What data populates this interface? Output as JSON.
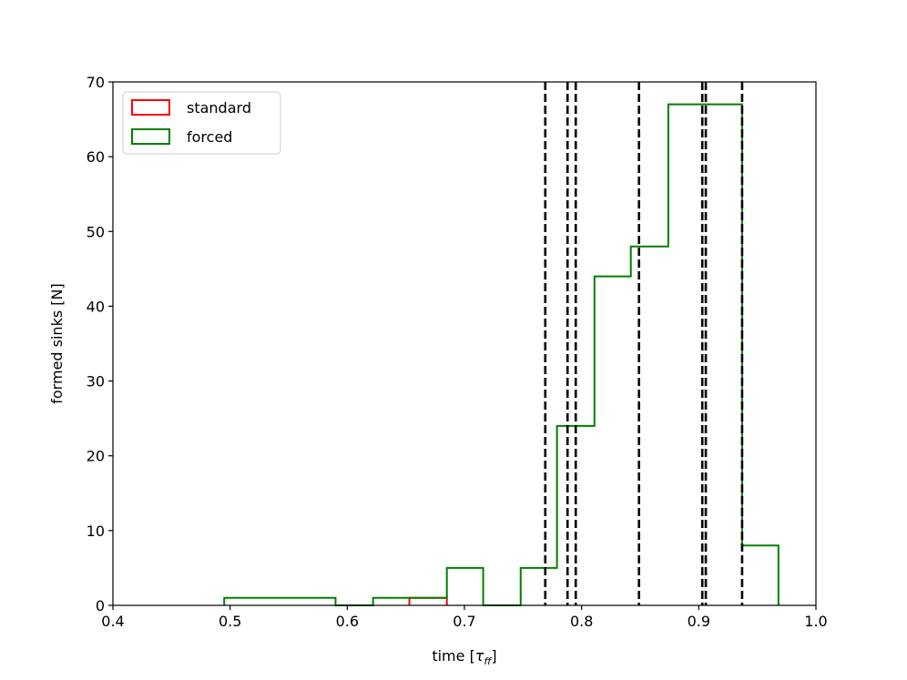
{
  "chart_data": {
    "type": "histogram-step",
    "title": "",
    "xlabel": "time [",
    "xlabel_symbol": "τ",
    "xlabel_subscript": "ff",
    "xlabel_suffix": "]",
    "ylabel": "formed sinks [N]",
    "xlim": [
      0.4,
      1.0
    ],
    "ylim": [
      0,
      70
    ],
    "xticks": [
      0.4,
      0.5,
      0.6,
      0.7,
      0.8,
      0.9,
      1.0
    ],
    "xtick_labels": [
      "0.4",
      "0.5",
      "0.6",
      "0.7",
      "0.8",
      "0.9",
      "1.0"
    ],
    "yticks": [
      0,
      10,
      20,
      30,
      40,
      50,
      60,
      70
    ],
    "ytick_labels": [
      "0",
      "10",
      "20",
      "30",
      "40",
      "50",
      "60",
      "70"
    ],
    "grid": false,
    "legend_position": "top-left",
    "series": [
      {
        "name": "standard",
        "color": "#ff0000",
        "bin_edges": [
          0.653,
          0.685
        ],
        "counts": [
          1
        ]
      },
      {
        "name": "forced",
        "color": "#008000",
        "bin_edges": [
          0.495,
          0.527,
          0.558,
          0.59,
          0.622,
          0.653,
          0.685,
          0.716,
          0.748,
          0.779,
          0.811,
          0.842,
          0.874,
          0.905,
          0.937,
          0.968
        ],
        "counts": [
          1,
          1,
          1,
          0,
          1,
          1,
          5,
          0,
          5,
          24,
          44,
          48,
          67,
          67,
          8
        ]
      }
    ],
    "vlines": [
      0.769,
      0.788,
      0.795,
      0.849,
      0.903,
      0.906,
      0.937
    ],
    "vline_style": "dashed",
    "vline_color": "#000000"
  }
}
